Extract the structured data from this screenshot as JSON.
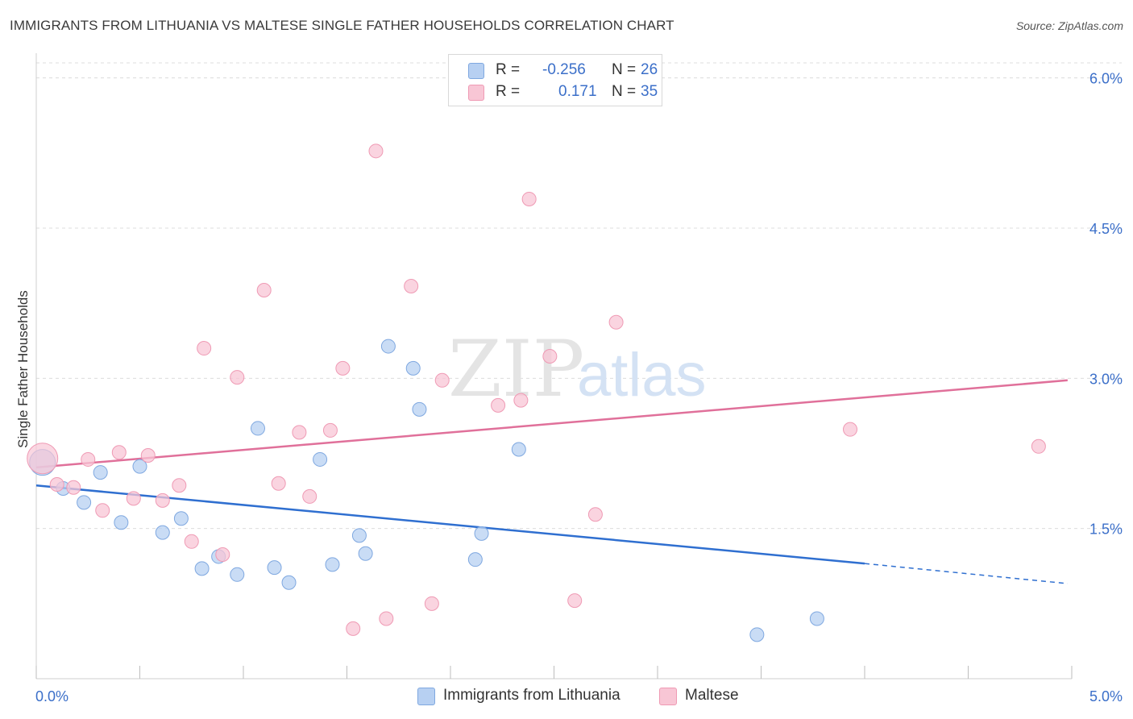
{
  "title": "IMMIGRANTS FROM LITHUANIA VS MALTESE SINGLE FATHER HOUSEHOLDS CORRELATION CHART",
  "source": "Source: ZipAtlas.com",
  "watermark": {
    "zip": "ZIP",
    "atlas": "atlas"
  },
  "legend": {
    "rows": [
      {
        "r_label": "R =",
        "r_value": "-0.256",
        "n_label": "N =",
        "n_value": "26"
      },
      {
        "r_label": "R =",
        "r_value": "0.171",
        "n_label": "N =",
        "n_value": "35"
      }
    ]
  },
  "bottom_legend": {
    "lithuania": "Immigrants from Lithuania",
    "maltese": "Maltese"
  },
  "colors": {
    "blue_fill": "#b7d0f2",
    "blue_stroke": "#7fa8e0",
    "blue_line": "#2f6fd0",
    "pink_fill": "#f8c6d5",
    "pink_stroke": "#ef9ab4",
    "pink_line": "#e0709a",
    "axis_label": "#3b6fc9",
    "grid": "#dcdcdc"
  },
  "chart_data": {
    "type": "scatter",
    "title": "IMMIGRANTS FROM LITHUANIA VS MALTESE SINGLE FATHER HOUSEHOLDS CORRELATION CHART",
    "xlabel": "",
    "ylabel": "Single Father Households",
    "xlim": [
      0,
      5.0
    ],
    "ylim": [
      0,
      6.15
    ],
    "x_tick_labels": [
      "0.0%",
      "5.0%"
    ],
    "y_ticks": [
      1.5,
      3.0,
      4.5,
      6.0
    ],
    "y_tick_labels": [
      "1.5%",
      "3.0%",
      "4.5%",
      "6.0%"
    ],
    "grid": true,
    "series": [
      {
        "name": "Immigrants from Lithuania",
        "color": "blue",
        "points": [
          [
            0.03,
            2.16
          ],
          [
            0.13,
            1.9
          ],
          [
            0.23,
            1.76
          ],
          [
            0.31,
            2.06
          ],
          [
            0.41,
            1.56
          ],
          [
            0.5,
            2.12
          ],
          [
            0.61,
            1.46
          ],
          [
            0.7,
            1.6
          ],
          [
            0.8,
            1.1
          ],
          [
            0.88,
            1.22
          ],
          [
            0.97,
            1.04
          ],
          [
            1.07,
            2.5
          ],
          [
            1.15,
            1.11
          ],
          [
            1.22,
            0.96
          ],
          [
            1.37,
            2.19
          ],
          [
            1.43,
            1.14
          ],
          [
            1.56,
            1.43
          ],
          [
            1.59,
            1.25
          ],
          [
            1.7,
            3.32
          ],
          [
            1.82,
            3.1
          ],
          [
            1.85,
            2.69
          ],
          [
            2.12,
            1.19
          ],
          [
            2.15,
            1.45
          ],
          [
            2.33,
            2.29
          ],
          [
            3.48,
            0.44
          ],
          [
            3.77,
            0.6
          ]
        ],
        "trend": {
          "x": [
            0,
            4.0
          ],
          "y": [
            1.93,
            1.15
          ],
          "dashed_to": [
            4.98,
            0.95
          ]
        }
      },
      {
        "name": "Maltese",
        "color": "pink",
        "points": [
          [
            0.03,
            2.2
          ],
          [
            0.1,
            1.94
          ],
          [
            0.18,
            1.91
          ],
          [
            0.25,
            2.19
          ],
          [
            0.32,
            1.68
          ],
          [
            0.4,
            2.26
          ],
          [
            0.47,
            1.8
          ],
          [
            0.54,
            2.23
          ],
          [
            0.61,
            1.78
          ],
          [
            0.69,
            1.93
          ],
          [
            0.75,
            1.37
          ],
          [
            0.81,
            3.3
          ],
          [
            0.9,
            1.24
          ],
          [
            0.97,
            3.01
          ],
          [
            1.1,
            3.88
          ],
          [
            1.17,
            1.95
          ],
          [
            1.27,
            2.46
          ],
          [
            1.32,
            1.82
          ],
          [
            1.42,
            2.48
          ],
          [
            1.48,
            3.1
          ],
          [
            1.53,
            0.5
          ],
          [
            1.64,
            5.27
          ],
          [
            1.69,
            0.6
          ],
          [
            1.81,
            3.92
          ],
          [
            1.91,
            0.75
          ],
          [
            1.96,
            2.98
          ],
          [
            2.23,
            2.73
          ],
          [
            2.34,
            2.78
          ],
          [
            2.38,
            4.79
          ],
          [
            2.48,
            3.22
          ],
          [
            2.6,
            0.78
          ],
          [
            2.7,
            1.64
          ],
          [
            2.8,
            3.56
          ],
          [
            3.93,
            2.49
          ],
          [
            4.84,
            2.32
          ]
        ],
        "trend": {
          "x": [
            0,
            4.98
          ],
          "y": [
            2.11,
            2.98
          ]
        }
      }
    ]
  }
}
